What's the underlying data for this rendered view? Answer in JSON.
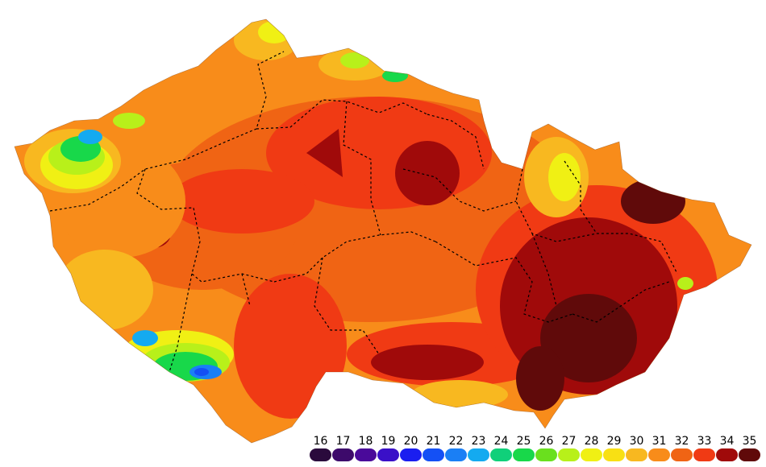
{
  "map": {
    "legend": {
      "steps": [
        {
          "label": "16",
          "color": "#2a0a3c"
        },
        {
          "label": "17",
          "color": "#3d0a6b"
        },
        {
          "label": "18",
          "color": "#4a0a9a"
        },
        {
          "label": "19",
          "color": "#3a10c8"
        },
        {
          "label": "20",
          "color": "#1a1ef0"
        },
        {
          "label": "21",
          "color": "#1450f5"
        },
        {
          "label": "22",
          "color": "#1a7ff5"
        },
        {
          "label": "23",
          "color": "#14aaf0"
        },
        {
          "label": "24",
          "color": "#10d07a"
        },
        {
          "label": "25",
          "color": "#18d84a"
        },
        {
          "label": "26",
          "color": "#6ae01e"
        },
        {
          "label": "27",
          "color": "#b8f01a"
        },
        {
          "label": "28",
          "color": "#f0f014"
        },
        {
          "label": "29",
          "color": "#f8e014"
        },
        {
          "label": "30",
          "color": "#f8b820"
        },
        {
          "label": "31",
          "color": "#f88c1a"
        },
        {
          "label": "32",
          "color": "#f06414"
        },
        {
          "label": "33",
          "color": "#f03a14"
        },
        {
          "label": "34",
          "color": "#a00a0a"
        },
        {
          "label": "35",
          "color": "#600a0a"
        }
      ]
    }
  }
}
